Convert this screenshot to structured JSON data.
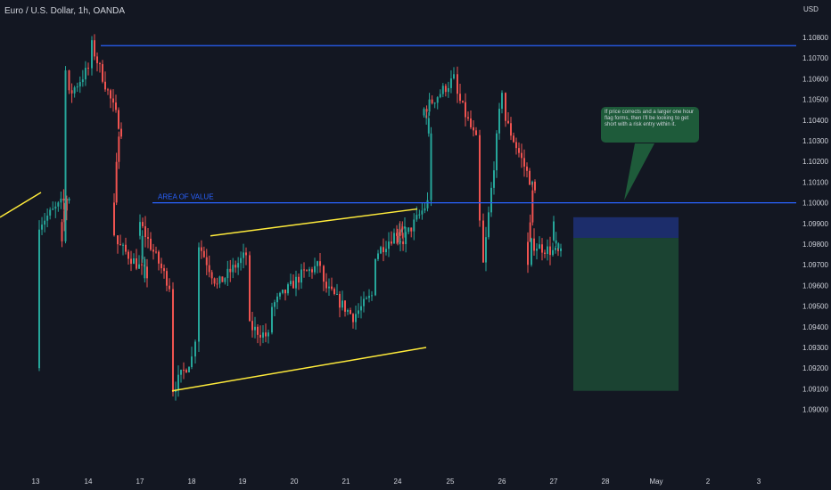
{
  "header": {
    "title": "Euro / U.S. Dollar, 1h, OANDA",
    "currency": "USD"
  },
  "annotations": {
    "area_of_value": "AREA OF VALUE",
    "callout": "If price corrects and a larger one hour flag forms, then I'll be looking to get short with a risk entry within it."
  },
  "colors": {
    "background": "#131722",
    "up": "#26a69a",
    "down": "#ef5350",
    "level_line": "#2962ff",
    "trendline": "#ffeb3b",
    "stop_zone": "#1c2d6b",
    "target_zone": "#1b4332",
    "axis_text": "#d1d4dc",
    "callout_bg": "#1e5b3a"
  },
  "chart_data": {
    "type": "candlestick",
    "title": "Euro / U.S. Dollar, 1h, OANDA",
    "unit": "USD",
    "ylim": [
      1.0898,
      1.1087
    ],
    "y_ticks": [
      "1.10800",
      "1.10700",
      "1.10600",
      "1.10500",
      "1.10400",
      "1.10300",
      "1.10200",
      "1.10100",
      "1.10000",
      "1.09900",
      "1.09800",
      "1.09700",
      "1.09600",
      "1.09500",
      "1.09400",
      "1.09300",
      "1.09200",
      "1.09100",
      "1.09000"
    ],
    "x_ticks": [
      "13",
      "14",
      "17",
      "18",
      "19",
      "20",
      "21",
      "24",
      "25",
      "26",
      "27",
      "28",
      "May",
      "2",
      "3"
    ],
    "horizontal_levels": [
      {
        "name": "resistance",
        "value": 1.1076,
        "from": "14"
      },
      {
        "name": "area-of-value",
        "value": 1.1,
        "from": "17"
      }
    ],
    "trendlines": [
      {
        "name": "prior-trendline",
        "points": [
          [
            "13",
            1.0993
          ],
          [
            "13-14",
            1.1005
          ]
        ]
      },
      {
        "name": "channel-upper",
        "points": [
          [
            "18",
            1.0984
          ],
          [
            "24",
            1.0997
          ]
        ]
      },
      {
        "name": "channel-lower",
        "points": [
          [
            "18",
            1.0909
          ],
          [
            "24-25",
            1.093
          ]
        ]
      }
    ],
    "position": {
      "type": "short",
      "entry": 1.0983,
      "stop": 1.0993,
      "target": 1.0909
    },
    "price_path": [
      {
        "x": "13",
        "price": 1.092
      },
      {
        "x": "13",
        "price": 1.099
      },
      {
        "x": "13-14",
        "price": 1.1003
      },
      {
        "x": "13-14",
        "price": 1.0984
      },
      {
        "x": "13-14",
        "price": 1.1064
      },
      {
        "x": "13-14",
        "price": 1.1052
      },
      {
        "x": "14",
        "price": 1.1065
      },
      {
        "x": "14",
        "price": 1.1076
      },
      {
        "x": "14-17",
        "price": 1.1035
      },
      {
        "x": "14-17",
        "price": 1.0985
      },
      {
        "x": "14-17",
        "price": 1.098
      },
      {
        "x": "17",
        "price": 1.0965
      },
      {
        "x": "17",
        "price": 1.099
      },
      {
        "x": "17-18",
        "price": 1.096
      },
      {
        "x": "17-18",
        "price": 1.091
      },
      {
        "x": "18",
        "price": 1.0925
      },
      {
        "x": "18",
        "price": 1.0935
      },
      {
        "x": "18",
        "price": 1.098
      },
      {
        "x": "18-19",
        "price": 1.096
      },
      {
        "x": "19",
        "price": 1.0975
      },
      {
        "x": "19",
        "price": 1.094
      },
      {
        "x": "19-20",
        "price": 1.0935
      },
      {
        "x": "19-20",
        "price": 1.095
      },
      {
        "x": "20",
        "price": 1.0965
      },
      {
        "x": "20-21",
        "price": 1.097
      },
      {
        "x": "20-21",
        "price": 1.096
      },
      {
        "x": "21",
        "price": 1.0945
      },
      {
        "x": "21-24",
        "price": 1.0955
      },
      {
        "x": "21-24",
        "price": 1.0975
      },
      {
        "x": "24",
        "price": 1.099
      },
      {
        "x": "24",
        "price": 1.0978
      },
      {
        "x": "24-25",
        "price": 1.1
      },
      {
        "x": "24-25",
        "price": 1.1035
      },
      {
        "x": "24-25",
        "price": 1.1045
      },
      {
        "x": "25",
        "price": 1.106
      },
      {
        "x": "25",
        "price": 1.1052
      },
      {
        "x": "25-26",
        "price": 1.103
      },
      {
        "x": "25-26",
        "price": 1.099
      },
      {
        "x": "25-26",
        "price": 1.097
      },
      {
        "x": "26",
        "price": 1.1055
      },
      {
        "x": "26",
        "price": 1.104
      },
      {
        "x": "26-27",
        "price": 1.1005
      },
      {
        "x": "26-27",
        "price": 1.0968
      },
      {
        "x": "26-27",
        "price": 1.098
      },
      {
        "x": "27",
        "price": 1.0975
      },
      {
        "x": "27",
        "price": 1.0988
      }
    ]
  }
}
